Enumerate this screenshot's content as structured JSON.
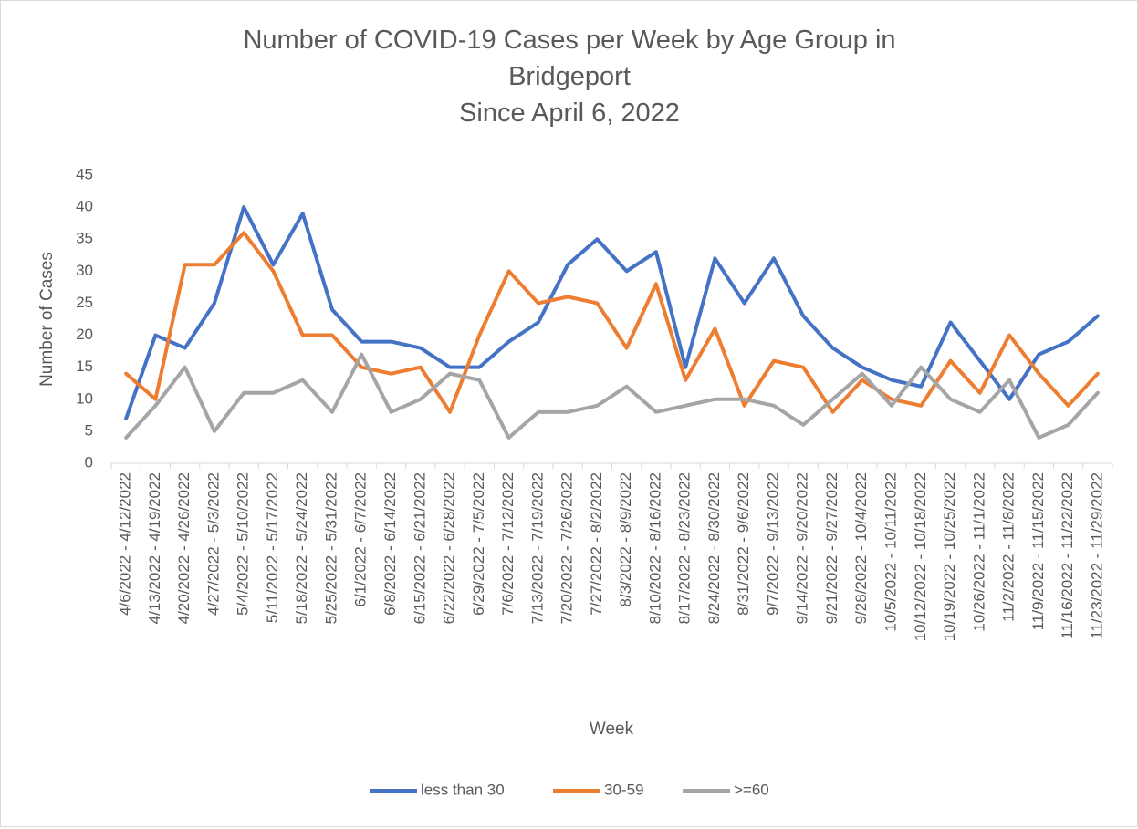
{
  "chart_data": {
    "type": "line",
    "title": "Number of COVID-19 Cases per Week by Age Group in Bridgeport",
    "subtitle": "Since April 6, 2022",
    "x_label": "Week",
    "y_label": "Number of Cases",
    "categories": [
      "4/6/2022 - 4/12/2022",
      "4/13/2022 - 4/19/2022",
      "4/20/2022 - 4/26/2022",
      "4/27/2022 - 5/3/2022",
      "5/4/2022 - 5/10/2022",
      "5/11/2022 - 5/17/2022",
      "5/18/2022 - 5/24/2022",
      "5/25/2022 - 5/31/2022",
      "6/1/2022 - 6/7/2022",
      "6/8/2022 - 6/14/2022",
      "6/15/2022 - 6/21/2022",
      "6/22/2022 - 6/28/2022",
      "6/29/2022 - 7/5/2022",
      "7/6/2022 - 7/12/2022",
      "7/13/2022 - 7/19/2022",
      "7/20/2022 - 7/26/2022",
      "7/27/2022 - 8/2/2022",
      "8/3/2022 - 8/9/2022",
      "8/10/2022 - 8/16/2022",
      "8/17/2022 - 8/23/2022",
      "8/24/2022 - 8/30/2022",
      "8/31/2022 - 9/6/2022",
      "9/7/2022 - 9/13/2022",
      "9/14/2022 - 9/20/2022",
      "9/21/2022 - 9/27/2022",
      "9/28/2022 - 10/4/2022",
      "10/5/2022 - 10/11/2022",
      "10/12/2022 - 10/18/2022",
      "10/19/2022 - 10/25/2022",
      "10/26/2022 - 11/1/2022",
      "11/2/2022 - 11/8/2022",
      "11/9/2022 - 11/15/2022",
      "11/16/2022 - 11/22/2022",
      "11/23/2022 - 11/29/2022"
    ],
    "series": [
      {
        "name": "less than 30",
        "color": "#4472c4",
        "values": [
          7,
          20,
          18,
          25,
          40,
          31,
          39,
          24,
          19,
          19,
          18,
          15,
          15,
          19,
          22,
          31,
          35,
          30,
          33,
          15,
          32,
          25,
          32,
          23,
          18,
          15,
          13,
          12,
          22,
          16,
          10,
          17,
          19,
          23
        ]
      },
      {
        "name": "30-59",
        "color": "#ed7d31",
        "values": [
          14,
          10,
          31,
          31,
          36,
          30,
          20,
          20,
          15,
          14,
          15,
          8,
          20,
          30,
          25,
          26,
          25,
          18,
          28,
          13,
          21,
          9,
          16,
          15,
          8,
          13,
          10,
          9,
          16,
          11,
          20,
          14,
          9,
          14
        ]
      },
      {
        "name": ">=60",
        "color": "#a5a5a5",
        "values": [
          4,
          9,
          15,
          5,
          11,
          11,
          13,
          8,
          17,
          8,
          10,
          14,
          13,
          4,
          8,
          8,
          9,
          12,
          8,
          9,
          10,
          10,
          9,
          6,
          10,
          14,
          9,
          15,
          10,
          8,
          13,
          4,
          6,
          11
        ]
      }
    ],
    "ylim": [
      0,
      45
    ],
    "yticks": [
      0,
      5,
      10,
      15,
      20,
      25,
      30,
      35,
      40,
      45
    ],
    "grid": false,
    "legend": "bottom"
  }
}
